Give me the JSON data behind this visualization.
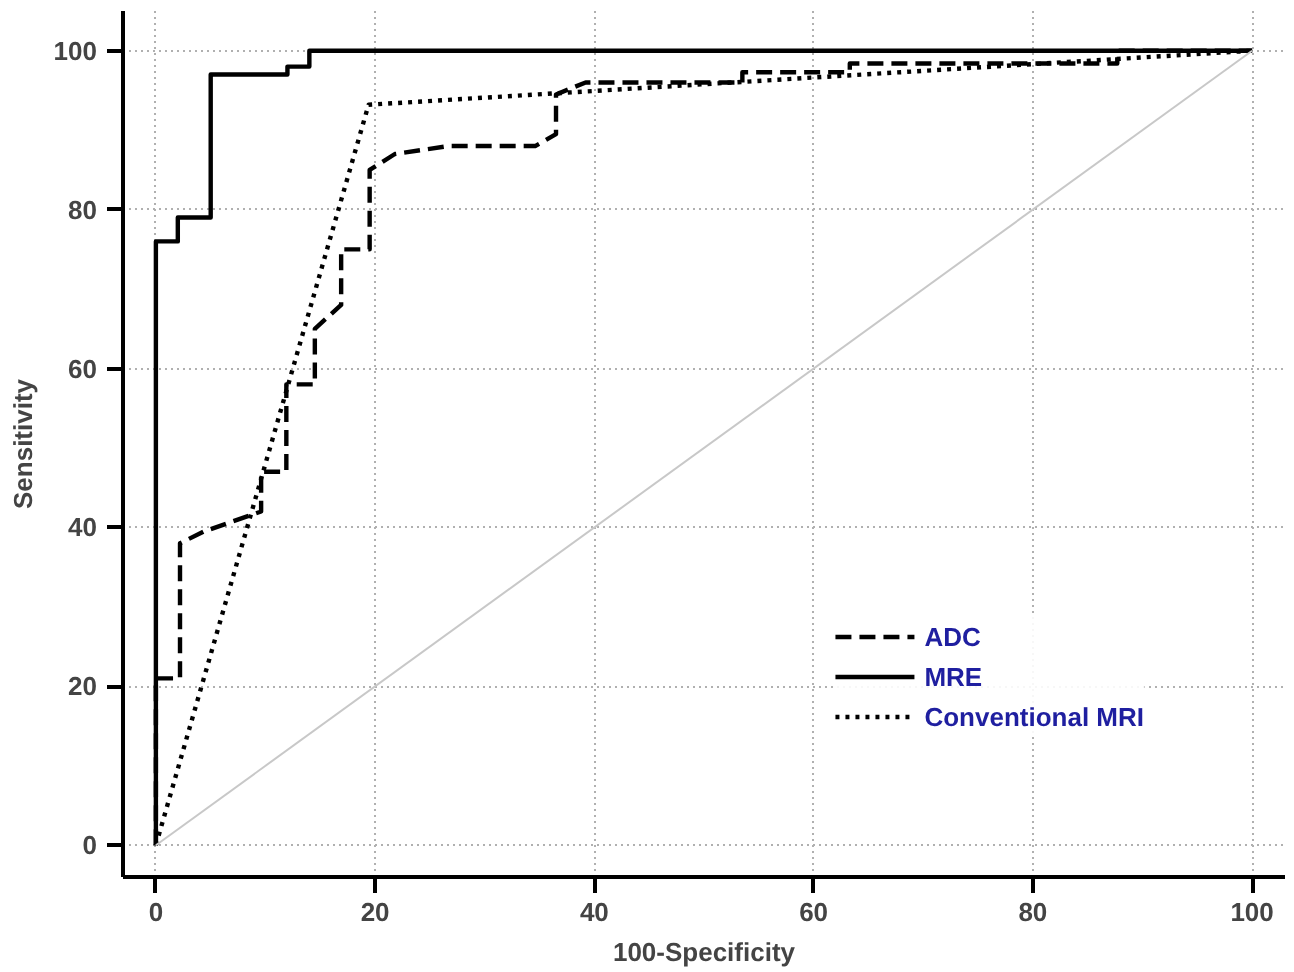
{
  "chart_data": {
    "type": "line",
    "xlabel": "100-Specificity",
    "ylabel": "Sensitivity",
    "xlim": [
      -3,
      103
    ],
    "ylim": [
      -4,
      105
    ],
    "xticks": [
      0,
      20,
      40,
      60,
      80,
      100
    ],
    "yticks": [
      0,
      20,
      40,
      60,
      80,
      100
    ],
    "grid": true,
    "legend": "bottom right",
    "marker": "none",
    "series": [
      {
        "name": "ADC",
        "color": "#000000",
        "line_style": "dashed",
        "x": [
          0,
          0,
          2.2,
          2.2,
          4.4,
          9.6,
          9.6,
          11.9,
          11.9,
          14.5,
          14.5,
          16.9,
          16.9,
          19.5,
          19.5,
          21.8,
          26.7,
          34.6,
          36.5,
          36.5,
          39.2,
          53.5,
          53.5,
          63.3,
          63.3,
          87.7,
          87.7,
          100
        ],
        "values": [
          0,
          21,
          21,
          38,
          39.5,
          42,
          47,
          47,
          58,
          58,
          65,
          68,
          75,
          75,
          85,
          87,
          88,
          88,
          89.5,
          94.5,
          96,
          96,
          97.3,
          97.3,
          98.4,
          98.4,
          100,
          100
        ]
      },
      {
        "name": "MRE",
        "color": "#000000",
        "line_style": "solid",
        "x": [
          0,
          0,
          2,
          2,
          5,
          5,
          12,
          12,
          14,
          14,
          100
        ],
        "values": [
          0,
          76,
          76,
          79,
          79,
          97,
          97,
          98,
          98,
          100,
          100
        ]
      },
      {
        "name": "Conventional MRI",
        "color": "#000000",
        "line_style": "dotted",
        "x": [
          0,
          19.4,
          100
        ],
        "values": [
          0,
          93.2,
          100
        ]
      },
      {
        "color": "#c8c8c8",
        "line_style": "solid",
        "x": [
          0,
          100
        ],
        "values": [
          0,
          100
        ]
      }
    ]
  }
}
